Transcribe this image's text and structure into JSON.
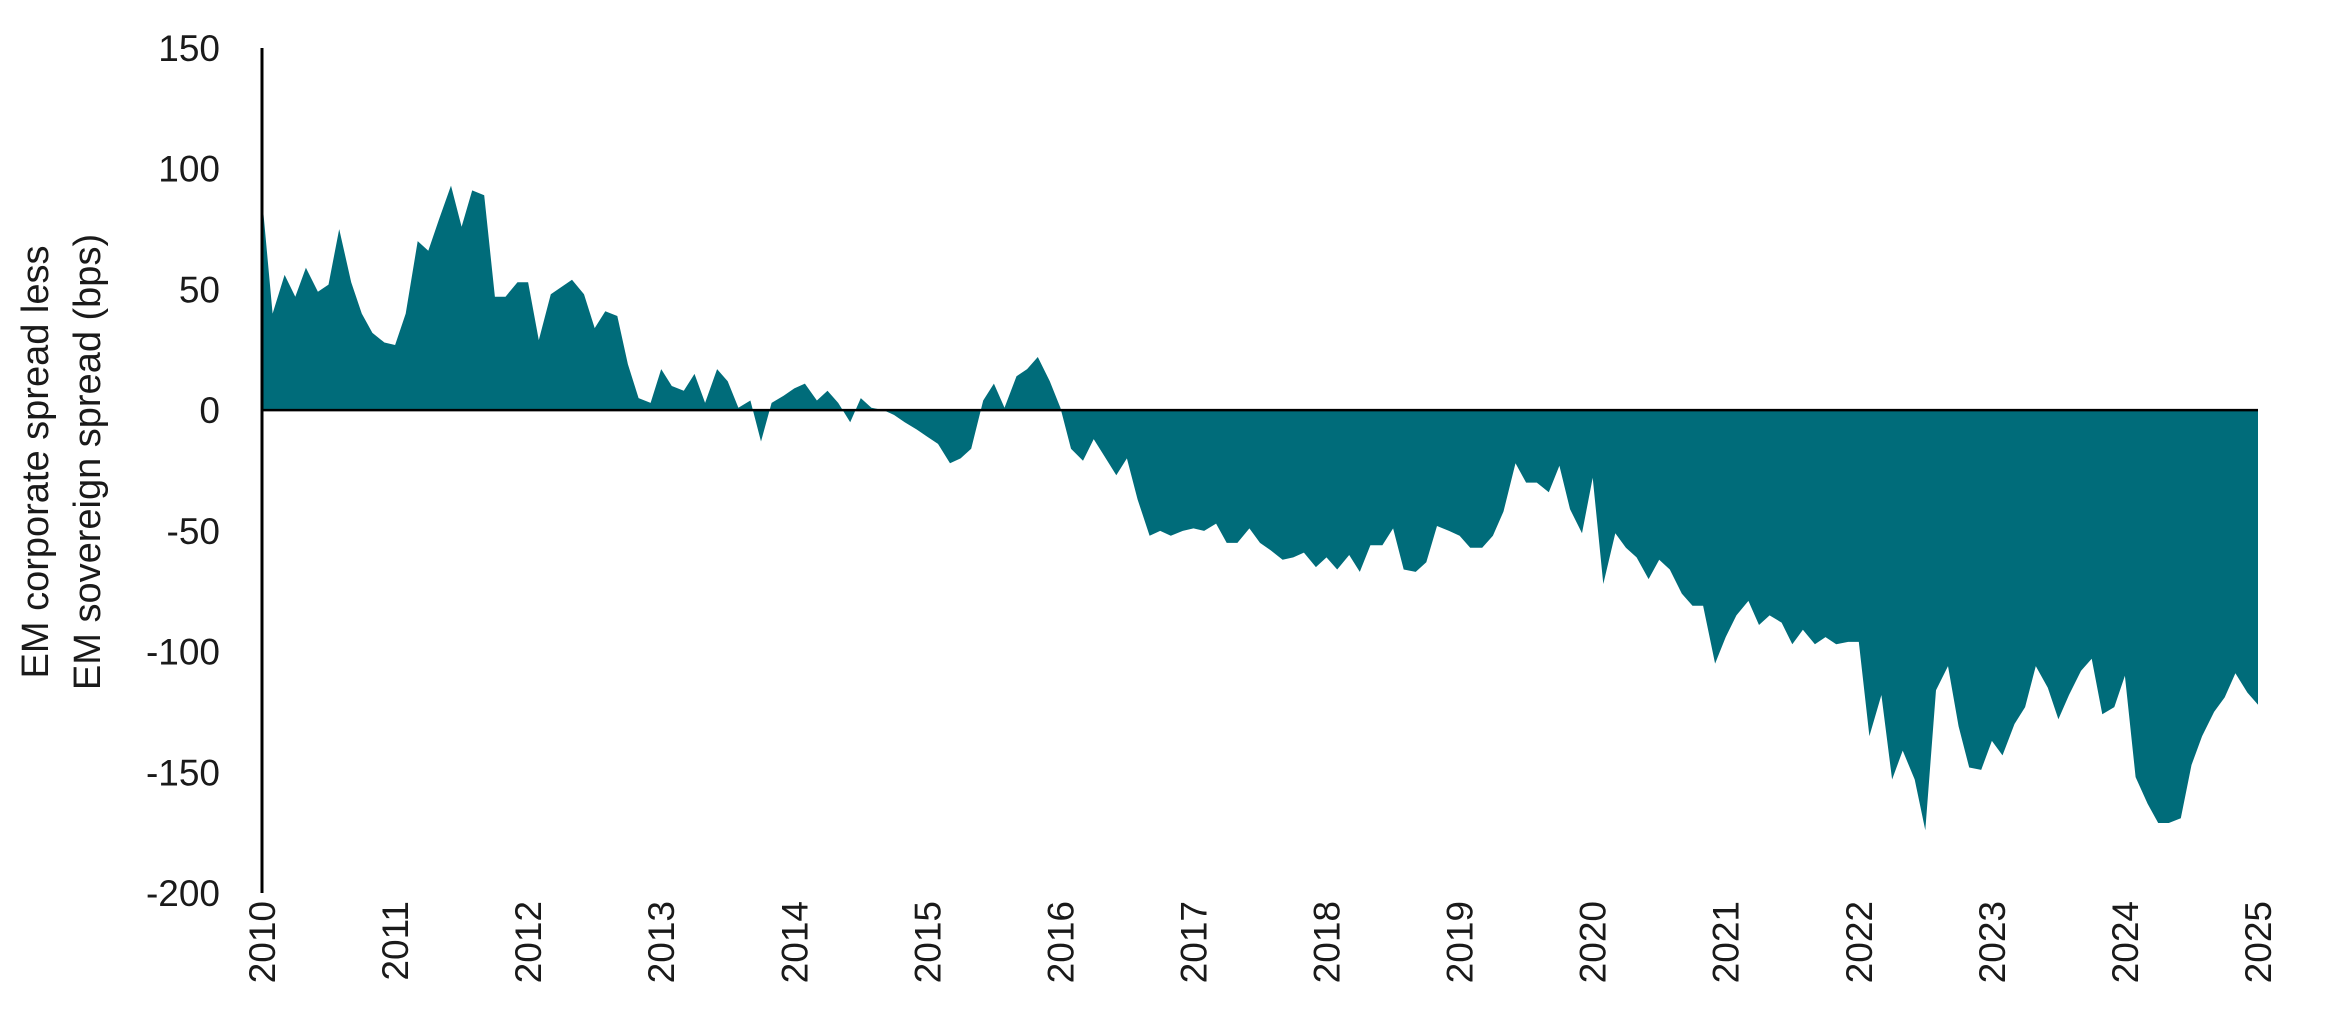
{
  "chart_data": {
    "type": "area",
    "title": "",
    "ylabel_lines": [
      "EM corporate spread less",
      "EM sovereign spread (bps)"
    ],
    "xlabel": "",
    "ylim": [
      -200,
      150
    ],
    "yticks": [
      150,
      100,
      50,
      0,
      -50,
      -100,
      -150,
      -200
    ],
    "ytick_labels": [
      "150",
      "100",
      "50",
      "0",
      "-50",
      "-100",
      "-150",
      "-200"
    ],
    "xlim": [
      2010,
      2025
    ],
    "xticks": [
      2010,
      2011,
      2012,
      2013,
      2014,
      2015,
      2016,
      2017,
      2018,
      2019,
      2020,
      2021,
      2022,
      2023,
      2024,
      2025
    ],
    "xtick_labels": [
      "2010",
      "2011",
      "2012",
      "2013",
      "2014",
      "2015",
      "2016",
      "2017",
      "2018",
      "2019",
      "2020",
      "2021",
      "2022",
      "2023",
      "2024",
      "2025"
    ],
    "grid": false,
    "legend": "none",
    "fill_color": "#006c7a",
    "axis_color": "#000000",
    "series": [
      {
        "x": [
          2010.0,
          2010.08,
          2010.17,
          2010.25,
          2010.33,
          2010.42,
          2010.5,
          2010.58,
          2010.67,
          2010.75,
          2010.83,
          2010.92,
          2011.0,
          2011.08,
          2011.17,
          2011.25,
          2011.33,
          2011.42,
          2011.5,
          2011.58,
          2011.67,
          2011.75,
          2011.83,
          2011.92,
          2012.0,
          2012.08,
          2012.17,
          2012.25,
          2012.33,
          2012.42,
          2012.5,
          2012.58,
          2012.67,
          2012.75,
          2012.83,
          2012.92,
          2013.0,
          2013.08,
          2013.17,
          2013.25,
          2013.33,
          2013.42,
          2013.5,
          2013.58,
          2013.67,
          2013.75,
          2013.83,
          2013.92,
          2014.0,
          2014.08,
          2014.17,
          2014.25,
          2014.33,
          2014.42,
          2014.5,
          2014.58,
          2014.67,
          2014.75,
          2014.83,
          2014.92,
          2015.0,
          2015.08,
          2015.17,
          2015.25,
          2015.33,
          2015.42,
          2015.5,
          2015.58,
          2015.67,
          2015.75,
          2015.83,
          2015.92,
          2016.0,
          2016.08,
          2016.17,
          2016.25,
          2016.33,
          2016.42,
          2016.5,
          2016.58,
          2016.67,
          2016.75,
          2016.83,
          2016.92,
          2017.0,
          2017.08,
          2017.17,
          2017.25,
          2017.33,
          2017.42,
          2017.5,
          2017.58,
          2017.67,
          2017.75,
          2017.83,
          2017.92,
          2018.0,
          2018.08,
          2018.17,
          2018.25,
          2018.33,
          2018.42,
          2018.5,
          2018.58,
          2018.67,
          2018.75,
          2018.83,
          2018.92,
          2019.0,
          2019.08,
          2019.17,
          2019.25,
          2019.33,
          2019.42,
          2019.5,
          2019.58,
          2019.67,
          2019.75,
          2019.83,
          2019.92,
          2020.0,
          2020.08,
          2020.17,
          2020.25,
          2020.33,
          2020.42,
          2020.5,
          2020.58,
          2020.67,
          2020.75,
          2020.83,
          2020.92,
          2021.0,
          2021.08,
          2021.17,
          2021.25,
          2021.33,
          2021.42,
          2021.5,
          2021.58,
          2021.67,
          2021.75,
          2021.83,
          2021.92,
          2022.0,
          2022.08,
          2022.17,
          2022.25,
          2022.33,
          2022.42,
          2022.5,
          2022.58,
          2022.67,
          2022.75,
          2022.83,
          2022.92,
          2023.0,
          2023.08,
          2023.17,
          2023.25,
          2023.33,
          2023.42,
          2023.5,
          2023.58,
          2023.67,
          2023.75,
          2023.83,
          2023.92,
          2024.0,
          2024.08,
          2024.17,
          2024.25,
          2024.33,
          2024.42,
          2024.5,
          2024.58,
          2024.67,
          2024.75,
          2024.83,
          2024.92,
          2025.0
        ],
        "values": [
          88,
          40,
          56,
          47,
          59,
          49,
          52,
          75,
          53,
          40,
          32,
          28,
          27,
          40,
          70,
          66,
          79,
          93,
          76,
          91,
          89,
          47,
          47,
          53,
          53,
          29,
          48,
          51,
          54,
          48,
          34,
          41,
          39,
          19,
          5,
          3,
          17,
          10,
          8,
          15,
          3,
          17,
          12,
          1,
          4,
          -13,
          3,
          6,
          9,
          11,
          4,
          8,
          3,
          -5,
          5,
          1,
          0,
          -2,
          -5,
          -8,
          -11,
          -14,
          -22,
          -20,
          -16,
          4,
          11,
          1,
          14,
          17,
          22,
          12,
          1,
          -16,
          -21,
          -12,
          -19,
          -27,
          -20,
          -37,
          -52,
          -50,
          -52,
          -50,
          -49,
          -50,
          -47,
          -55,
          -55,
          -49,
          -55,
          -58,
          -62,
          -61,
          -59,
          -65,
          -61,
          -66,
          -60,
          -67,
          -56,
          -56,
          -49,
          -66,
          -67,
          -63,
          -48,
          -50,
          -52,
          -57,
          -57,
          -52,
          -42,
          -22,
          -30,
          -30,
          -34,
          -23,
          -41,
          -51,
          -28,
          -72,
          -51,
          -57,
          -61,
          -70,
          -62,
          -66,
          -76,
          -81,
          -81,
          -105,
          -94,
          -85,
          -79,
          -89,
          -85,
          -88,
          -97,
          -91,
          -97,
          -94,
          -97,
          -96,
          -96,
          -135,
          -118,
          -153,
          -141,
          -153,
          -174,
          -116,
          -106,
          -131,
          -148,
          -149,
          -137,
          -143,
          -130,
          -123,
          -106,
          -115,
          -128,
          -118,
          -108,
          -103,
          -126,
          -123,
          -110,
          -152,
          -163,
          -171,
          -171,
          -169,
          -147,
          -135,
          -125,
          -119,
          -109,
          -117,
          -122
        ]
      }
    ]
  }
}
